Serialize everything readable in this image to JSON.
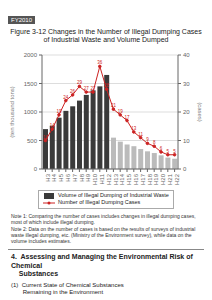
{
  "chart_data": {
    "type": "bar",
    "title": "Figure 3-12  Changes in the Number of Illegal Dumping Cases of Industrial Waste and Volume Dumped",
    "categories": [
      "H3",
      "H4",
      "H5",
      "H6",
      "H7",
      "H8",
      "H9",
      "H10",
      "H11",
      "H12",
      "H13",
      "H14",
      "H15",
      "H16",
      "H17",
      "H18",
      "H19",
      "H20",
      "H21",
      "H22"
    ],
    "series": [
      {
        "name": "Volume of Illegal Dumping of Industrial Waste",
        "type": "bar",
        "color": "#3a3a3a",
        "colors": [
          "#3a3a3a",
          "#3a3a3a",
          "#3a3a3a",
          "#3a3a3a",
          "#3a3a3a",
          "#3a3a3a",
          "#3a3a3a",
          "#3a3a3a",
          "#3a3a3a",
          "#3a3a3a",
          "#bbbbbb",
          "#bbbbbb",
          "#bbbbbb",
          "#bbbbbb",
          "#bbbbbb",
          "#bbbbbb",
          "#bbbbbb",
          "#bbbbbb",
          "#bbbbbb",
          "#bbbbbb"
        ],
        "values": [
          700,
          760,
          900,
          1020,
          1100,
          1200,
          1300,
          1380,
          1450,
          1650,
          550,
          480,
          430,
          400,
          350,
          310,
          280,
          240,
          200,
          180
        ]
      },
      {
        "name": "Number of Illegal Dumping Cases",
        "type": "line",
        "axis": "y2",
        "color": "#cc2222",
        "marker": "circle",
        "data_labels": true,
        "values": [
          10,
          14,
          19,
          24,
          26,
          29,
          27,
          27,
          36,
          28,
          21,
          19,
          17,
          13,
          11,
          9,
          8,
          6,
          5,
          5
        ]
      }
    ],
    "ylabel": "(ten thousand tons)",
    "y2label": "(cases)",
    "ylim": [
      0,
      2000
    ],
    "yticks": [
      0,
      500,
      1000,
      1500,
      2000
    ],
    "y2lim": [
      0,
      40
    ],
    "y2ticks": [
      0,
      10,
      20,
      30,
      40
    ],
    "grid": true,
    "legend": "bottom",
    "annotations": [
      "FY2010",
      "Note 1: Comparing the number of cases includes changes in illegal dumping cases, most of which include illegal dumping.\nNote 2: Data on the number of cases is based on the results of surveys of industrial waste illegal dumping, etc. (Ministry of the Environment survey), while data on the volume includes estimates.",
      "4.  Assessing and Managing the Environmental Risk of Chemical\n    Substances",
      "(1)  Current State of Chemical Substances\n       Remaining in the Environment"
    ]
  }
}
